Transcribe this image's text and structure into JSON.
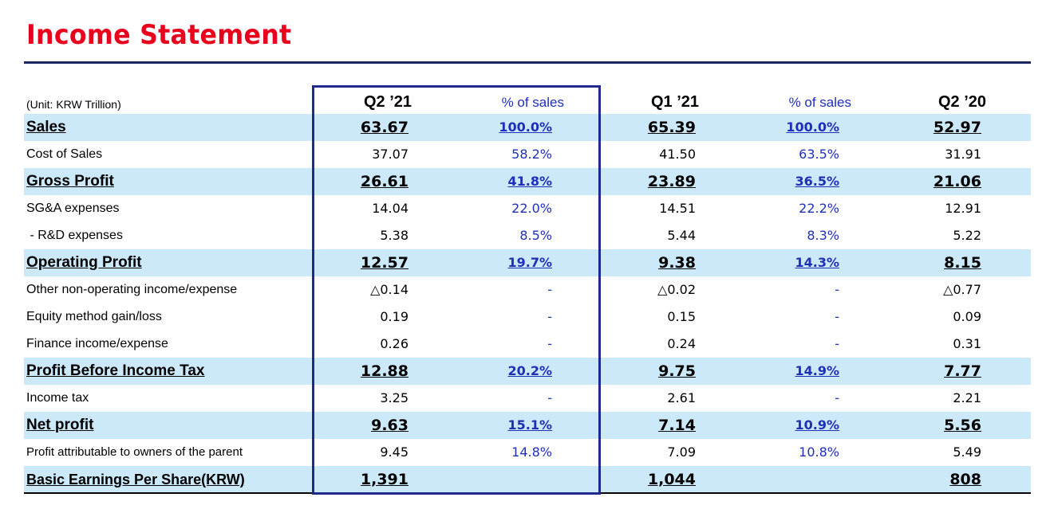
{
  "title": "Income Statement",
  "header": {
    "unit": "(Unit: KRW Trillion)",
    "col1": "Q2 ’21",
    "col2": "% of sales",
    "col3": "Q1 ’21",
    "col4": "% of sales",
    "col5": "Q2 ’20"
  },
  "rows": [
    {
      "label": "Sales",
      "q2_21": "63.67",
      "pct_q2_21": "100.0%",
      "q1_21": "65.39",
      "pct_q1_21": "100.0%",
      "q2_20": "52.97"
    },
    {
      "label": "Cost of Sales",
      "q2_21": "37.07",
      "pct_q2_21": "58.2%",
      "q1_21": "41.50",
      "pct_q1_21": "63.5%",
      "q2_20": "31.91"
    },
    {
      "label": "Gross Profit",
      "q2_21": "26.61",
      "pct_q2_21": "41.8%",
      "q1_21": "23.89",
      "pct_q1_21": "36.5%",
      "q2_20": "21.06"
    },
    {
      "label": "SG&A expenses",
      "q2_21": "14.04",
      "pct_q2_21": "22.0%",
      "q1_21": "14.51",
      "pct_q1_21": "22.2%",
      "q2_20": "12.91"
    },
    {
      "label": " - R&D expenses",
      "q2_21": "5.38",
      "pct_q2_21": "8.5%",
      "q1_21": "5.44",
      "pct_q1_21": "8.3%",
      "q2_20": "5.22"
    },
    {
      "label": "Operating Profit",
      "q2_21": "12.57",
      "pct_q2_21": "19.7%",
      "q1_21": "9.38",
      "pct_q1_21": "14.3%",
      "q2_20": "8.15"
    },
    {
      "label": "Other non-operating income/expense",
      "q2_21": "△0.14",
      "pct_q2_21": "-",
      "q1_21": "△0.02",
      "pct_q1_21": "-",
      "q2_20": "△0.77"
    },
    {
      "label": "Equity method gain/loss",
      "q2_21": "0.19",
      "pct_q2_21": "-",
      "q1_21": "0.15",
      "pct_q1_21": "-",
      "q2_20": "0.09"
    },
    {
      "label": "Finance income/expense",
      "q2_21": "0.26",
      "pct_q2_21": "-",
      "q1_21": "0.24",
      "pct_q1_21": "-",
      "q2_20": "0.31"
    },
    {
      "label": "Profit Before Income Tax",
      "q2_21": "12.88",
      "pct_q2_21": "20.2%",
      "q1_21": "9.75",
      "pct_q1_21": "14.9%",
      "q2_20": "7.77"
    },
    {
      "label": "Income tax",
      "q2_21": "3.25",
      "pct_q2_21": "-",
      "q1_21": "2.61",
      "pct_q1_21": "-",
      "q2_20": "2.21"
    },
    {
      "label": "Net profit",
      "q2_21": "9.63",
      "pct_q2_21": "15.1%",
      "q1_21": "7.14",
      "pct_q1_21": "10.9%",
      "q2_20": "5.56"
    },
    {
      "label": "Profit attributable to owners of the parent",
      "q2_21": "9.45",
      "pct_q2_21": "14.8%",
      "q1_21": "7.09",
      "pct_q1_21": "10.8%",
      "q2_20": "5.49"
    },
    {
      "label": "Basic Earnings Per Share(KRW)",
      "q2_21": "1,391",
      "pct_q2_21": "",
      "q1_21": "1,044",
      "pct_q1_21": "",
      "q2_20": "808"
    }
  ],
  "colors": {
    "title": "#e8001c",
    "highlight_band": "#cce9f9",
    "frame": "#1f2a8c",
    "percent_text": "#1f30b8"
  }
}
